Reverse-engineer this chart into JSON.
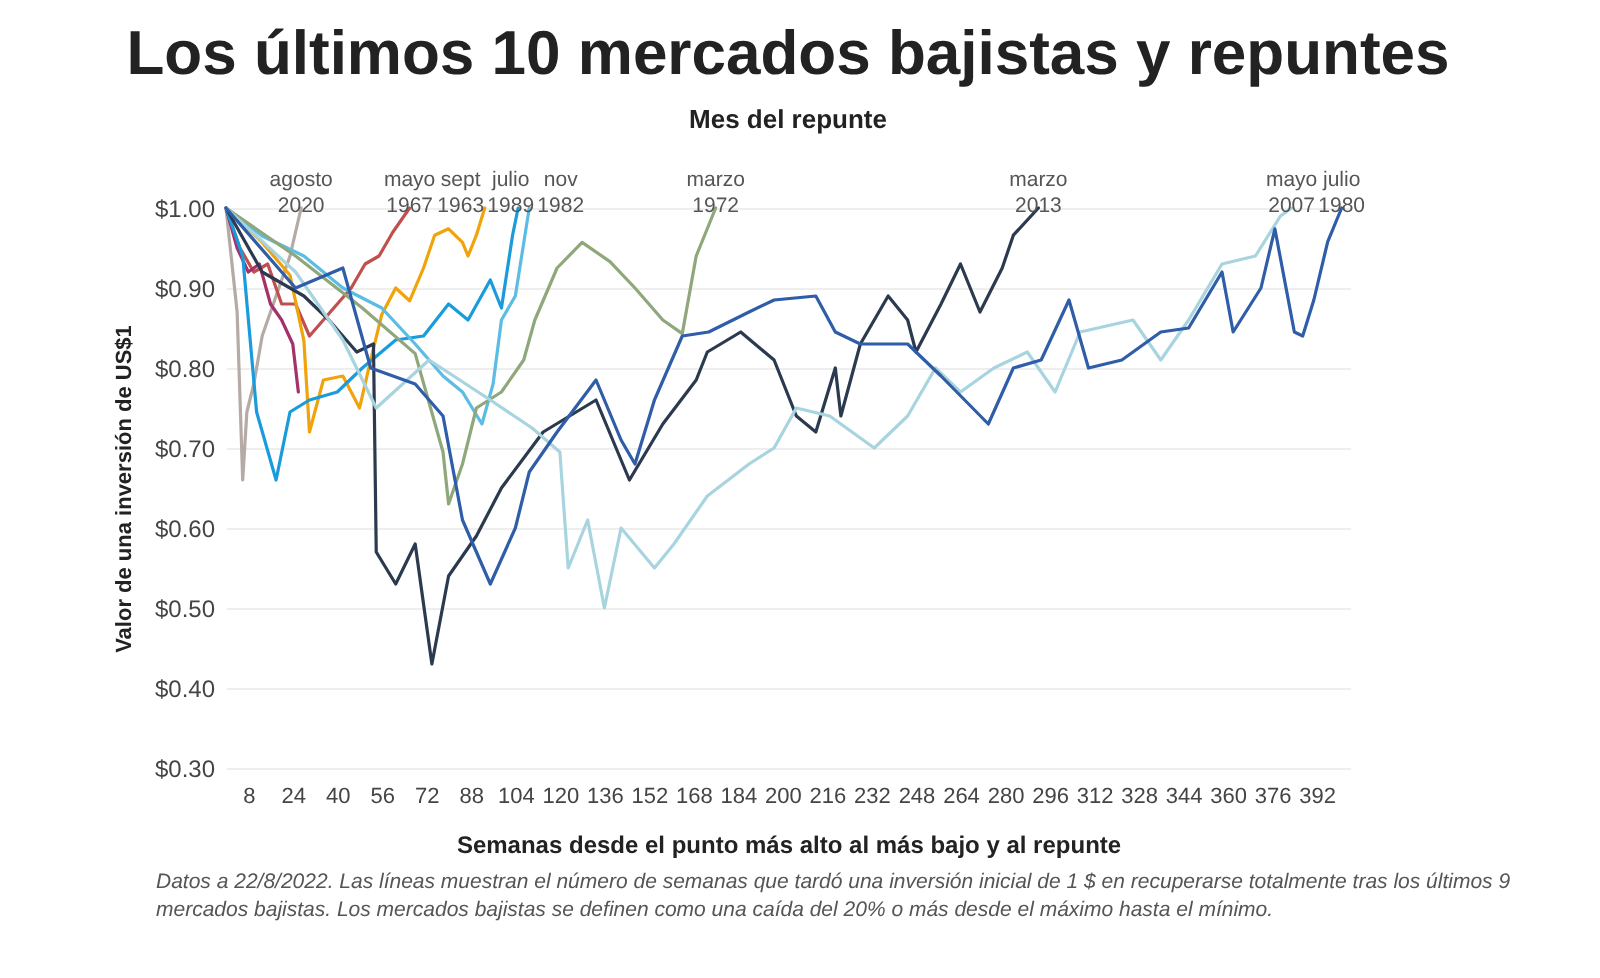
{
  "chart_data": {
    "type": "line",
    "title": "Los últimos 10 mercados bajistas y repuntes",
    "legend_title": "Mes del repunte",
    "xlabel": "Semanas desde el punto más alto al más bajo y al repunte",
    "ylabel": "Valor de una inversión de US$1",
    "xlim": [
      0,
      404
    ],
    "xticks": [
      8,
      24,
      40,
      56,
      72,
      88,
      104,
      120,
      136,
      152,
      168,
      184,
      200,
      216,
      232,
      248,
      264,
      280,
      296,
      312,
      328,
      344,
      360,
      376,
      392
    ],
    "ylim": [
      0.3,
      1.0
    ],
    "yticks": [
      {
        "value": 0.3,
        "label": "$0.30"
      },
      {
        "value": 0.4,
        "label": "$0.40"
      },
      {
        "value": 0.5,
        "label": "$0.50"
      },
      {
        "value": 0.6,
        "label": "$0.60"
      },
      {
        "value": 0.7,
        "label": "$0.70"
      },
      {
        "value": 0.8,
        "label": "$0.80"
      },
      {
        "value": 0.9,
        "label": "$0.90"
      },
      {
        "value": 1.0,
        "label": "$1.00"
      }
    ],
    "grid": "y",
    "legend": false,
    "series": [
      {
        "name": "agosto 2020",
        "color": "#b5aaa5",
        "x": [
          0,
          4,
          6,
          7.5,
          10,
          13,
          17,
          23,
          27
        ],
        "values": [
          1.0,
          0.87,
          0.66,
          0.745,
          0.78,
          0.84,
          0.88,
          0.94,
          1.0
        ]
      },
      {
        "name": "mayo 1967",
        "color": "#c0504d",
        "x": [
          0,
          5,
          10,
          15,
          20,
          25,
          30,
          35,
          40,
          45,
          50,
          55,
          60,
          66
        ],
        "values": [
          1.0,
          0.95,
          0.92,
          0.93,
          0.88,
          0.88,
          0.84,
          0.86,
          0.88,
          0.9,
          0.93,
          0.94,
          0.97,
          1.0
        ]
      },
      {
        "color": "#a3326b",
        "x": [
          0,
          4,
          8,
          12,
          16,
          20,
          24,
          26
        ],
        "values": [
          1.0,
          0.95,
          0.92,
          0.93,
          0.88,
          0.86,
          0.83,
          0.77
        ]
      },
      {
        "name": "sept 1963",
        "color": "#f0a30a",
        "x": [
          0,
          13,
          23,
          28,
          30,
          35,
          42,
          48,
          52,
          56,
          61,
          66,
          71,
          75,
          80,
          85,
          87,
          90,
          93
        ],
        "values": [
          1.0,
          0.957,
          0.916,
          0.834,
          0.72,
          0.785,
          0.79,
          0.75,
          0.81,
          0.867,
          0.9,
          0.884,
          0.925,
          0.966,
          0.974,
          0.957,
          0.94,
          0.966,
          1.0
        ]
      },
      {
        "name": "julio 1989",
        "color": "#1a9bdb",
        "x": [
          0,
          6,
          11,
          18,
          23,
          30,
          40,
          49,
          61,
          71,
          80,
          87,
          95,
          99,
          103,
          105
        ],
        "values": [
          1.0,
          0.94,
          0.745,
          0.66,
          0.745,
          0.76,
          0.77,
          0.8,
          0.835,
          0.84,
          0.88,
          0.86,
          0.91,
          0.875,
          0.966,
          1.0
        ]
      },
      {
        "name": "nov 1982",
        "color": "#5bbce4",
        "x": [
          0,
          13,
          28,
          42,
          56,
          68,
          78,
          85,
          92,
          96,
          99,
          104,
          109
        ],
        "values": [
          1.0,
          0.965,
          0.94,
          0.9,
          0.875,
          0.83,
          0.79,
          0.77,
          0.73,
          0.78,
          0.86,
          0.89,
          1.0
        ]
      },
      {
        "name": "marzo 1972",
        "color": "#8fa77a",
        "x": [
          0,
          25,
          49,
          68,
          78,
          80,
          85,
          90,
          99,
          107,
          111,
          119,
          128,
          138,
          147,
          157,
          164,
          169,
          176
        ],
        "values": [
          1.0,
          0.94,
          0.875,
          0.818,
          0.695,
          0.63,
          0.68,
          0.75,
          0.77,
          0.81,
          0.86,
          0.925,
          0.957,
          0.933,
          0.9,
          0.86,
          0.843,
          0.94,
          1.0
        ]
      },
      {
        "name": "marzo 2013",
        "color": "#2b3a4e",
        "x": [
          0,
          13,
          28,
          37,
          47,
          53,
          54,
          61,
          68,
          74,
          80,
          90,
          99,
          114,
          133,
          145,
          157,
          169,
          173,
          185,
          197,
          205,
          212,
          219,
          221,
          228,
          238,
          245,
          248,
          257,
          264,
          271,
          279,
          283,
          292
        ],
        "values": [
          1.0,
          0.92,
          0.89,
          0.86,
          0.82,
          0.83,
          0.57,
          0.53,
          0.58,
          0.43,
          0.54,
          0.59,
          0.65,
          0.72,
          0.76,
          0.66,
          0.73,
          0.785,
          0.82,
          0.845,
          0.81,
          0.74,
          0.72,
          0.8,
          0.74,
          0.83,
          0.89,
          0.86,
          0.82,
          0.88,
          0.93,
          0.87,
          0.925,
          0.966,
          1.0
        ]
      },
      {
        "name": "mayo 2007",
        "color": "#a8d4e0",
        "x": [
          0,
          25,
          42,
          54,
          73,
          95,
          110,
          120,
          123,
          130,
          136,
          142,
          154,
          161,
          173,
          188,
          197,
          205,
          217,
          233,
          245,
          255,
          264,
          276,
          288,
          298,
          307,
          326,
          336,
          346,
          358,
          370,
          379,
          383
        ],
        "values": [
          1.0,
          0.92,
          0.835,
          0.75,
          0.81,
          0.76,
          0.725,
          0.695,
          0.55,
          0.61,
          0.5,
          0.6,
          0.55,
          0.58,
          0.64,
          0.68,
          0.7,
          0.75,
          0.74,
          0.7,
          0.74,
          0.8,
          0.77,
          0.8,
          0.82,
          0.77,
          0.845,
          0.86,
          0.81,
          0.86,
          0.93,
          0.94,
          0.99,
          1.0
        ]
      },
      {
        "name": "julio 1980",
        "color": "#2f5da8",
        "x": [
          0,
          25,
          42,
          52,
          68,
          78,
          85,
          95,
          104,
          109,
          119,
          133,
          142,
          147,
          154,
          164,
          173.5,
          188,
          197,
          212,
          219,
          228,
          245,
          257,
          274,
          283,
          293,
          303,
          310,
          322,
          336,
          346,
          358,
          362,
          372,
          377,
          384,
          387,
          391,
          396,
          401
        ],
        "values": [
          1.0,
          0.9,
          0.925,
          0.8,
          0.78,
          0.74,
          0.61,
          0.53,
          0.6,
          0.67,
          0.72,
          0.785,
          0.71,
          0.68,
          0.76,
          0.84,
          0.845,
          0.87,
          0.885,
          0.89,
          0.845,
          0.83,
          0.83,
          0.79,
          0.73,
          0.8,
          0.81,
          0.885,
          0.8,
          0.81,
          0.845,
          0.85,
          0.92,
          0.845,
          0.9,
          0.974,
          0.845,
          0.84,
          0.885,
          0.958,
          1.0
        ]
      }
    ],
    "annotations": [
      "Datos a 22/8/2022. Las líneas muestran el número de semanas que tardó una inversión inicial de 1 $ en recuperarse totalmente tras los últimos 9 mercados bajistas. Los mercados bajistas se definen como una caída del 20% o más desde el máximo hasta el mínimo."
    ]
  }
}
